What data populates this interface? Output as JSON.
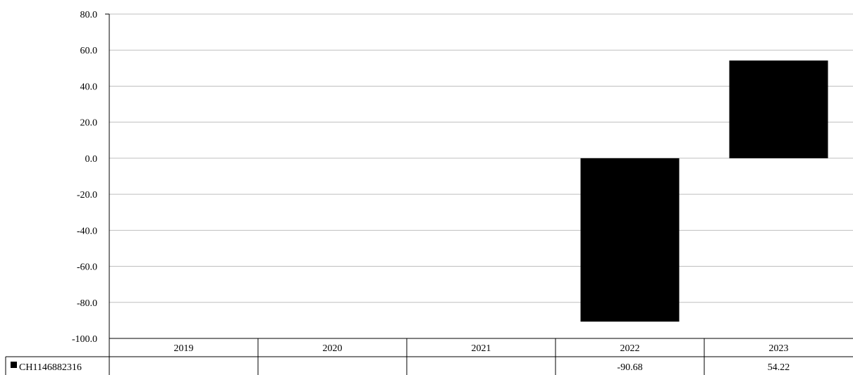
{
  "chart_data": {
    "type": "bar",
    "categories": [
      "2019",
      "2020",
      "2021",
      "2022",
      "2023"
    ],
    "series": [
      {
        "name": "CH1146882316",
        "values": [
          null,
          null,
          null,
          -90.68,
          54.22
        ],
        "labels": [
          "",
          "",
          "",
          "-90.68",
          "54.22"
        ],
        "color": "#000000"
      }
    ],
    "y_ticks": [
      "80.0",
      "60.0",
      "40.0",
      "20.0",
      "0.0",
      "-20.0",
      "-40.0",
      "-60.0",
      "-80.0",
      "-100.0"
    ],
    "ylim": [
      -100,
      80
    ],
    "title": "",
    "xlabel": "",
    "ylabel": "",
    "grid": true,
    "legend_placement": "data-table-left",
    "gridline_color": "#bfbfbf"
  }
}
